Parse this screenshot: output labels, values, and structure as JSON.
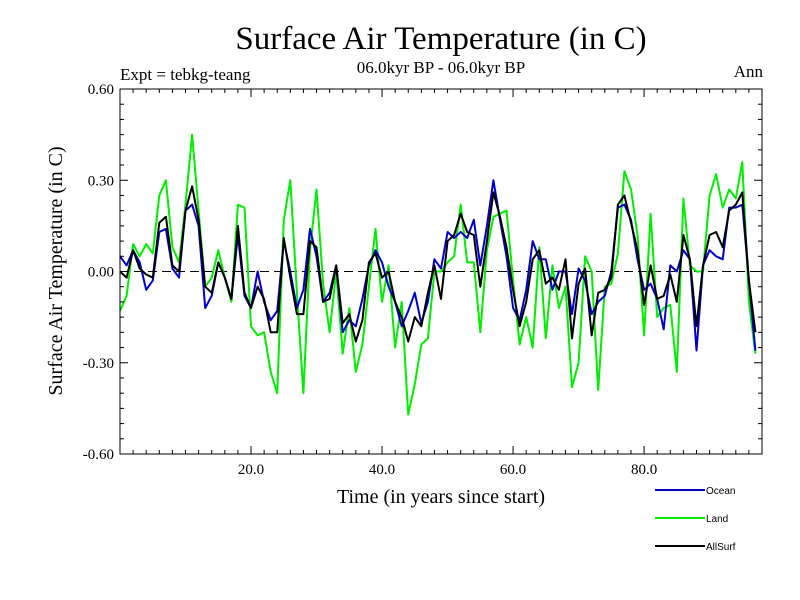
{
  "chart_data": {
    "type": "line",
    "title": "Surface Air Temperature (in C)",
    "subtitle": "06.0kyr BP - 06.0kyr BP",
    "left_label": "Expt = tebkg-teang",
    "right_label": "Ann",
    "xlabel": "Time (in years since start)",
    "ylabel": "Surface Air Temperature (in C)",
    "xlim": [
      0,
      98
    ],
    "ylim": [
      -0.6,
      0.6
    ],
    "xticks": [
      20,
      40,
      60,
      80
    ],
    "xtick_labels": [
      "20.0",
      "40.0",
      "60.0",
      "80.0"
    ],
    "yticks": [
      -0.6,
      -0.3,
      0.0,
      0.3,
      0.6
    ],
    "ytick_labels": [
      "-0.60",
      "-0.30",
      "0.00",
      "0.30",
      "0.60"
    ],
    "zero_line": "dashed",
    "legend_position": "bottom-right",
    "x_start": 0,
    "x_step": 1,
    "series": [
      {
        "name": "Ocean",
        "color": "#0000cc",
        "values": [
          0.05,
          0.02,
          0.07,
          0.03,
          -0.06,
          -0.03,
          0.13,
          0.14,
          0.01,
          -0.02,
          0.2,
          0.22,
          0.15,
          -0.12,
          -0.08,
          0.03,
          -0.02,
          -0.09,
          0.12,
          -0.08,
          -0.12,
          0.0,
          -0.1,
          -0.16,
          -0.13,
          0.1,
          0.0,
          -0.12,
          -0.06,
          0.14,
          0.05,
          -0.1,
          -0.07,
          0.02,
          -0.2,
          -0.16,
          -0.18,
          -0.09,
          0.02,
          0.07,
          0.03,
          -0.05,
          -0.1,
          -0.18,
          -0.13,
          -0.07,
          -0.17,
          -0.1,
          0.04,
          0.01,
          0.13,
          0.11,
          0.13,
          0.11,
          0.17,
          0.02,
          0.15,
          0.3,
          0.17,
          0.05,
          -0.12,
          -0.16,
          -0.06,
          0.1,
          0.04,
          0.04,
          -0.06,
          0.0,
          0.0,
          -0.14,
          0.01,
          -0.03,
          -0.14,
          -0.1,
          -0.08,
          0.0,
          0.21,
          0.22,
          0.17,
          0.04,
          -0.06,
          -0.04,
          -0.09,
          -0.19,
          0.02,
          0.0,
          0.07,
          0.04,
          -0.26,
          0.02,
          0.07,
          0.05,
          0.04,
          0.21,
          0.21,
          0.22,
          -0.03,
          -0.26
        ]
      },
      {
        "name": "Land",
        "color": "#00ee00",
        "values": [
          -0.13,
          -0.08,
          0.09,
          0.05,
          0.09,
          0.06,
          0.25,
          0.3,
          0.08,
          0.03,
          0.22,
          0.45,
          0.2,
          -0.05,
          -0.02,
          0.07,
          -0.02,
          -0.1,
          0.22,
          0.21,
          -0.18,
          -0.21,
          -0.2,
          -0.33,
          -0.4,
          0.17,
          0.3,
          -0.07,
          -0.4,
          0.07,
          0.27,
          -0.04,
          -0.2,
          0.0,
          -0.27,
          -0.12,
          -0.33,
          -0.24,
          -0.05,
          0.14,
          -0.1,
          0.02,
          -0.25,
          -0.1,
          -0.47,
          -0.37,
          -0.24,
          -0.22,
          0.0,
          0.0,
          0.03,
          0.05,
          0.22,
          0.03,
          0.03,
          -0.2,
          0.07,
          0.18,
          0.19,
          0.2,
          -0.03,
          -0.24,
          -0.15,
          -0.25,
          0.08,
          -0.22,
          0.02,
          -0.12,
          -0.05,
          -0.38,
          -0.3,
          0.05,
          0.0,
          -0.39,
          -0.05,
          -0.04,
          0.06,
          0.33,
          0.27,
          0.12,
          -0.21,
          0.19,
          -0.15,
          -0.12,
          -0.11,
          -0.33,
          0.24,
          0.02,
          0.0,
          0.0,
          0.25,
          0.32,
          0.21,
          0.27,
          0.24,
          0.36,
          -0.1,
          -0.27
        ]
      },
      {
        "name": "AllSurf",
        "color": "#000000",
        "values": [
          0.0,
          -0.02,
          0.07,
          0.01,
          -0.01,
          -0.02,
          0.16,
          0.18,
          0.02,
          0.0,
          0.2,
          0.28,
          0.17,
          -0.05,
          -0.07,
          0.03,
          -0.02,
          -0.09,
          0.15,
          -0.07,
          -0.12,
          -0.05,
          -0.09,
          -0.2,
          -0.2,
          0.11,
          -0.02,
          -0.14,
          -0.14,
          0.1,
          0.08,
          -0.1,
          -0.09,
          0.02,
          -0.17,
          -0.14,
          -0.23,
          -0.16,
          0.03,
          0.06,
          -0.02,
          0.0,
          -0.1,
          -0.15,
          -0.23,
          -0.15,
          -0.18,
          -0.07,
          0.02,
          -0.09,
          0.1,
          0.12,
          0.19,
          0.13,
          0.12,
          -0.05,
          0.1,
          0.26,
          0.18,
          0.08,
          -0.06,
          -0.18,
          -0.1,
          0.04,
          0.07,
          -0.04,
          -0.02,
          -0.06,
          0.04,
          -0.22,
          -0.04,
          0.01,
          -0.21,
          -0.07,
          -0.06,
          -0.02,
          0.22,
          0.25,
          0.16,
          0.07,
          -0.11,
          0.02,
          -0.09,
          -0.08,
          -0.01,
          -0.1,
          0.12,
          0.04,
          -0.18,
          0.02,
          0.12,
          0.13,
          0.08,
          0.2,
          0.22,
          0.26,
          -0.03,
          -0.2
        ]
      }
    ]
  }
}
